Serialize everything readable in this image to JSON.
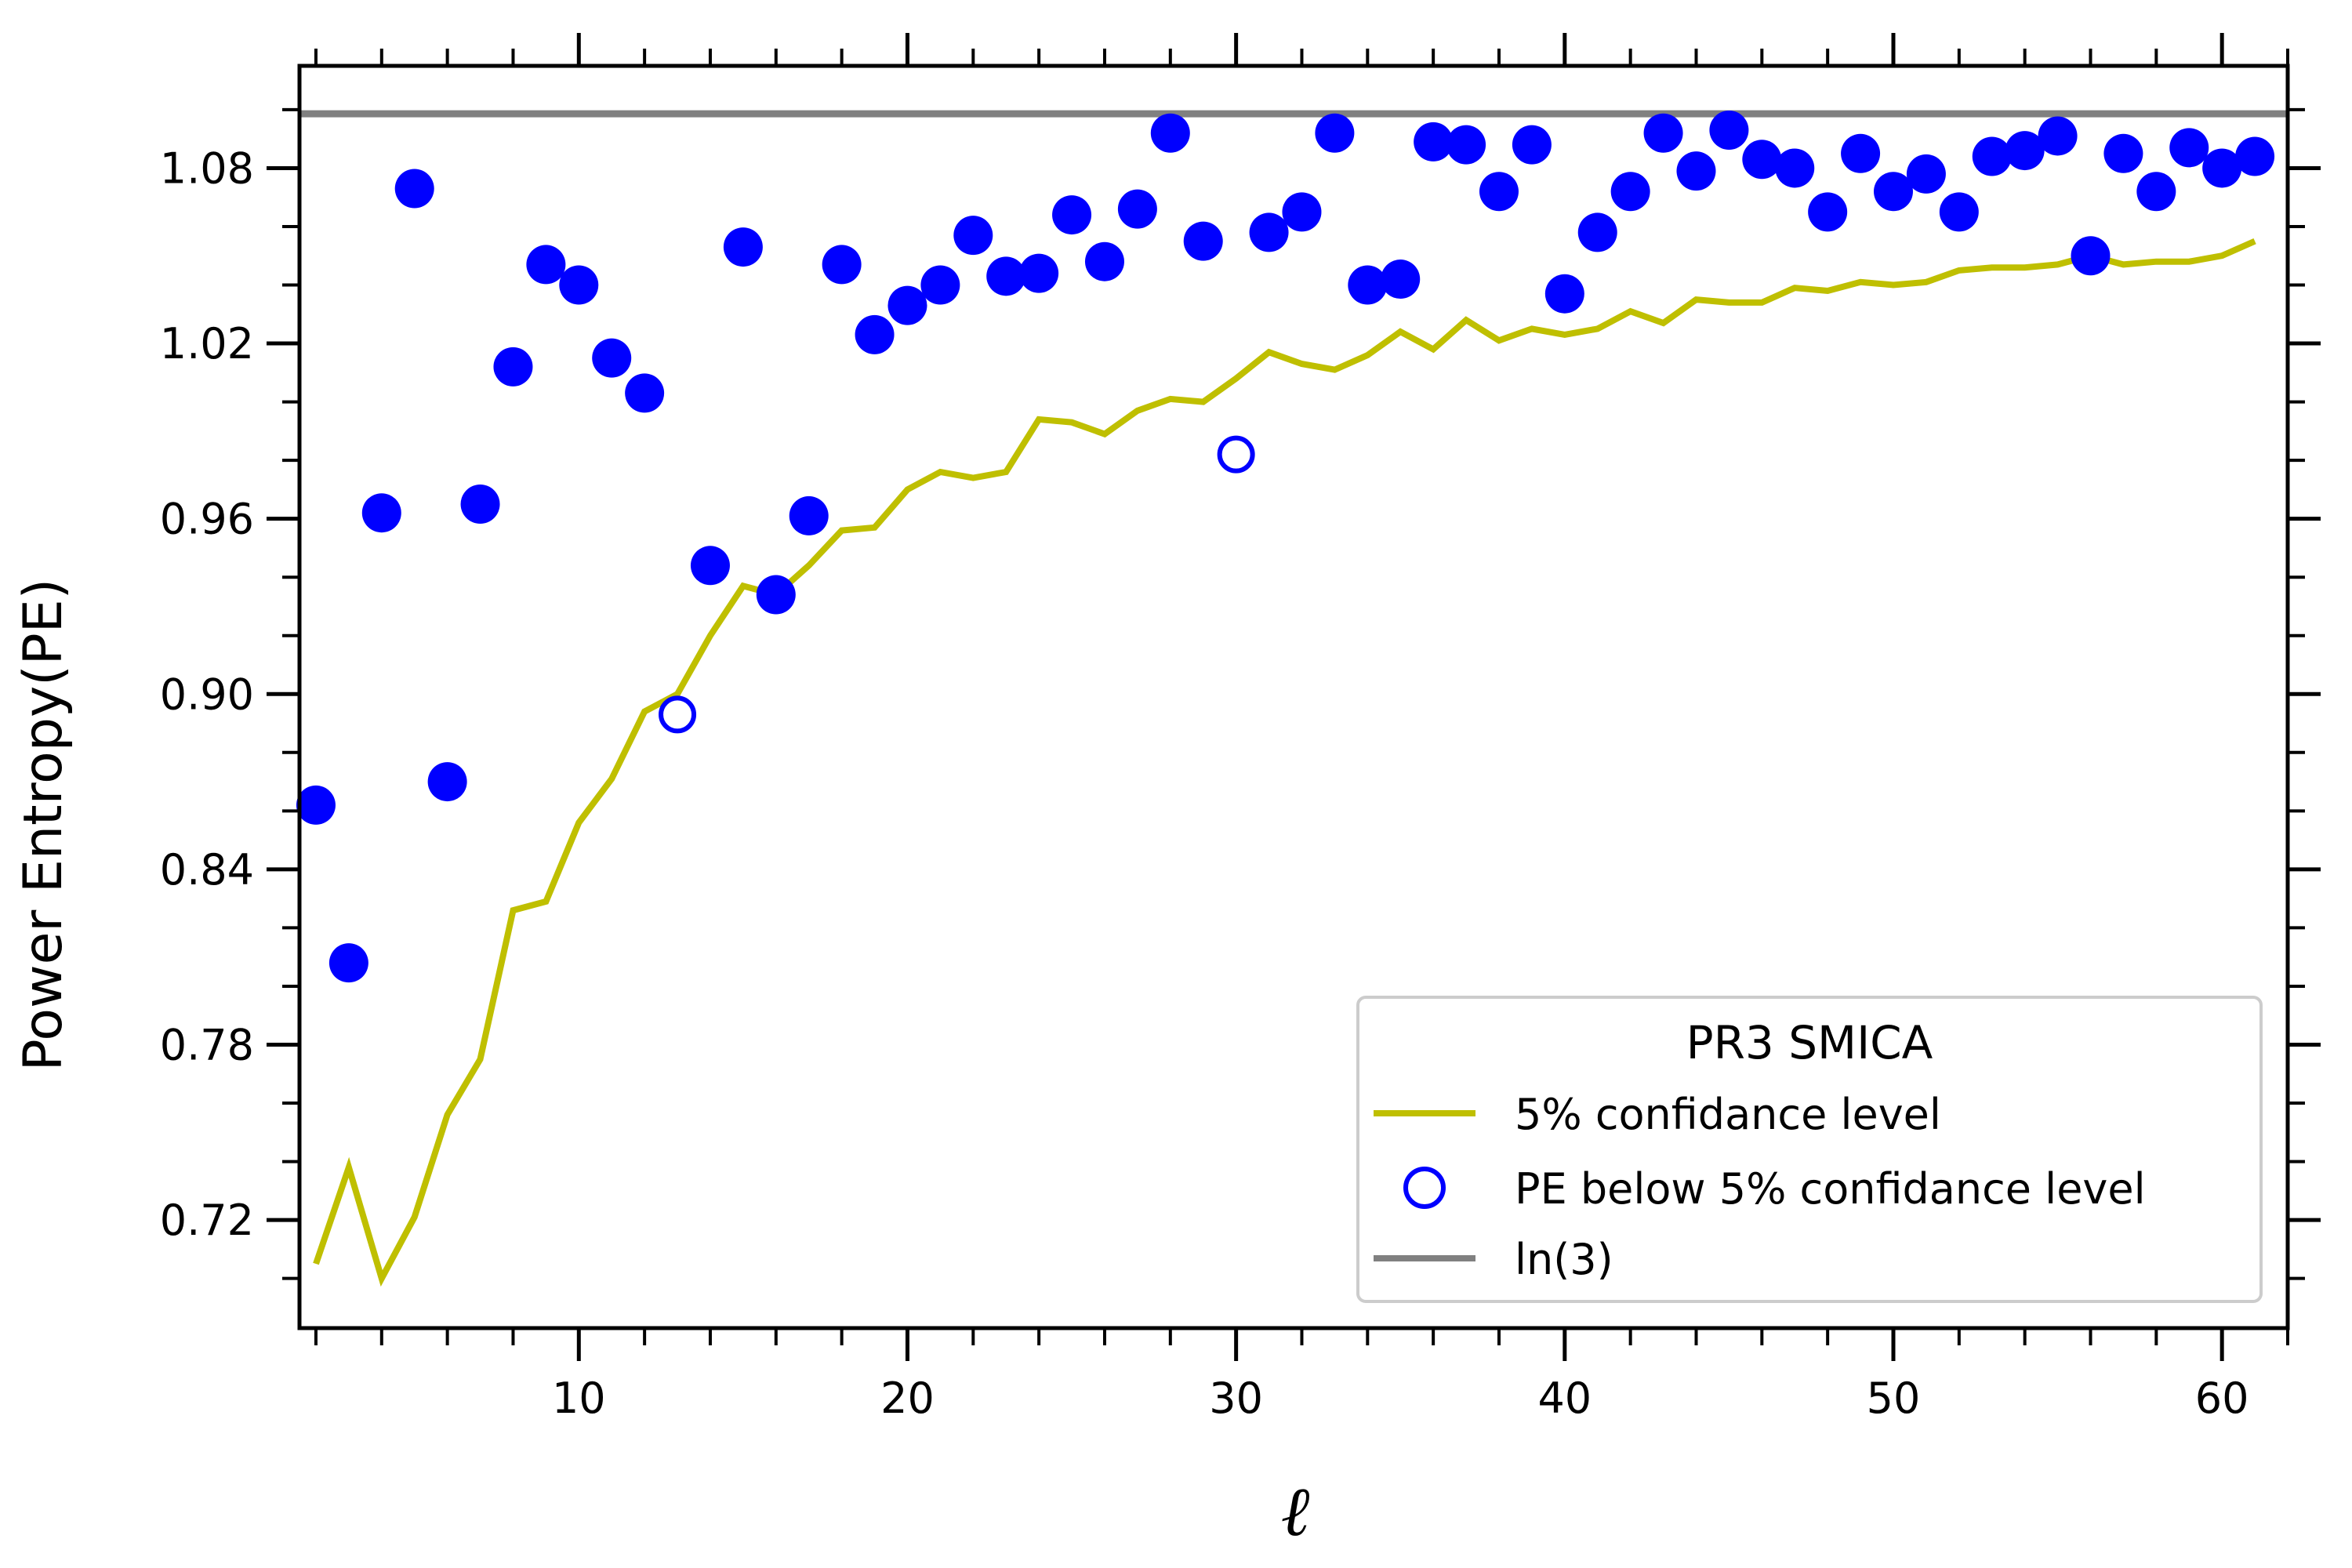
{
  "chart_data": {
    "type": "scatter",
    "title": "",
    "xlabel": "ℓ",
    "ylabel": "Power Entropy(PE)",
    "xlim": [
      1.5,
      62
    ],
    "ylim": [
      0.683,
      1.115
    ],
    "xticks": [
      10,
      20,
      30,
      40,
      50,
      60
    ],
    "yticks": [
      0.72,
      0.78,
      0.84,
      0.9,
      0.96,
      1.02,
      1.08
    ],
    "ytick_labels": [
      "0.72",
      "0.78",
      "0.84",
      "0.90",
      "0.96",
      "1.02",
      "1.08"
    ],
    "colors": {
      "points": "#0000ff",
      "confidence": "#bfbf00",
      "ln3": "#808080"
    },
    "legend": {
      "title": "PR3 SMICA",
      "placement": "lower-right",
      "entries": [
        "5% confidance level",
        "PE below 5% confidance level",
        "ln(3)"
      ]
    },
    "ln3": 1.0986,
    "series": [
      {
        "name": "PR3 SMICA PE",
        "x": [
          2,
          3,
          4,
          5,
          6,
          7,
          8,
          9,
          10,
          11,
          12,
          14,
          15,
          16,
          17,
          18,
          19,
          20,
          21,
          22,
          23,
          24,
          25,
          26,
          27,
          28,
          29,
          31,
          32,
          33,
          34,
          35,
          36,
          37,
          38,
          39,
          40,
          41,
          42,
          43,
          44,
          45,
          46,
          47,
          48,
          49,
          50,
          51,
          52,
          53,
          54,
          55,
          56,
          57,
          58,
          59,
          60,
          61
        ],
        "y": [
          0.862,
          0.808,
          0.962,
          1.073,
          0.87,
          0.965,
          1.012,
          1.047,
          1.04,
          1.015,
          1.003,
          0.944,
          1.053,
          0.934,
          0.961,
          1.047,
          1.023,
          1.033,
          1.04,
          1.057,
          1.043,
          1.044,
          1.064,
          1.048,
          1.066,
          1.092,
          1.055,
          1.058,
          1.065,
          1.092,
          1.04,
          1.042,
          1.089,
          1.088,
          1.072,
          1.088,
          1.037,
          1.058,
          1.072,
          1.092,
          1.079,
          1.093,
          1.083,
          1.08,
          1.065,
          1.085,
          1.072,
          1.078,
          1.065,
          1.084,
          1.086,
          1.091,
          1.05,
          1.085,
          1.072,
          1.087,
          1.08,
          1.084
        ]
      },
      {
        "name": "PE below 5% confidance level",
        "x": [
          13,
          30
        ],
        "y": [
          0.893,
          0.982
        ]
      },
      {
        "name": "5% confidance level",
        "x": [
          2,
          3,
          4,
          5,
          6,
          7,
          8,
          9,
          10,
          11,
          12,
          13,
          14,
          15,
          16,
          17,
          18,
          19,
          20,
          21,
          22,
          23,
          24,
          25,
          26,
          27,
          28,
          29,
          30,
          31,
          32,
          33,
          34,
          35,
          36,
          37,
          38,
          39,
          40,
          41,
          42,
          43,
          44,
          45,
          46,
          47,
          48,
          49,
          50,
          51,
          52,
          53,
          54,
          55,
          56,
          57,
          58,
          59,
          60,
          61
        ],
        "y": [
          0.705,
          0.738,
          0.7,
          0.721,
          0.756,
          0.775,
          0.826,
          0.829,
          0.856,
          0.871,
          0.894,
          0.9,
          0.92,
          0.937,
          0.934,
          0.944,
          0.956,
          0.957,
          0.97,
          0.976,
          0.974,
          0.976,
          0.994,
          0.993,
          0.989,
          0.997,
          1.001,
          1.0,
          1.008,
          1.017,
          1.013,
          1.011,
          1.016,
          1.024,
          1.018,
          1.028,
          1.021,
          1.025,
          1.023,
          1.025,
          1.031,
          1.027,
          1.035,
          1.034,
          1.034,
          1.039,
          1.038,
          1.041,
          1.04,
          1.041,
          1.045,
          1.046,
          1.046,
          1.047,
          1.05,
          1.047,
          1.048,
          1.048,
          1.05,
          1.055
        ]
      }
    ]
  }
}
